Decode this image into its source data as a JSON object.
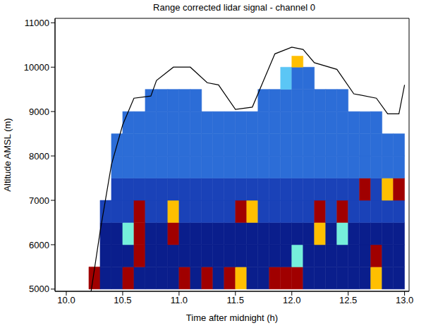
{
  "chart_data": {
    "type": "heatmap",
    "title": "Range corrected lidar signal - channel 0",
    "x_label": "Time after midnight (h)",
    "y_label": "Altitude AMSL (m)",
    "xlim": [
      9.9,
      13.04
    ],
    "ylim": [
      4950,
      11100
    ],
    "xticks": [
      {
        "value": 10,
        "label": "10.0"
      },
      10.5,
      {
        "value": 11,
        "label": "11.0"
      },
      11.5,
      {
        "value": 12,
        "label": "12.0"
      },
      12.5,
      {
        "value": 13,
        "label": "13.0"
      }
    ],
    "yticks": [
      5000,
      6000,
      7000,
      8000,
      9000,
      10000,
      11000
    ],
    "x_edges": [
      10.2,
      10.3,
      10.4,
      10.5,
      10.6,
      10.7,
      10.8,
      10.9,
      11.0,
      11.1,
      11.2,
      11.3,
      11.4,
      11.5,
      11.6,
      11.7,
      11.8,
      11.9,
      12.0,
      12.1,
      12.2,
      12.3,
      12.4,
      12.5,
      12.6,
      12.7,
      12.8,
      12.9,
      13.0
    ],
    "y_edges": [
      5000,
      5500,
      6000,
      6500,
      7000,
      7500,
      8000,
      8500,
      9000,
      9500,
      10000,
      10250
    ],
    "cells": [
      [
        10,
        1,
        1,
        10,
        1,
        1,
        1,
        1,
        10,
        1,
        10,
        1,
        10,
        8,
        1,
        1,
        10,
        10,
        10,
        1,
        1,
        1,
        1,
        1,
        1,
        8,
        1,
        1
      ],
      [
        null,
        1,
        1,
        1,
        10,
        1,
        1,
        1,
        1,
        1,
        1,
        1,
        1,
        1,
        1,
        1,
        1,
        1,
        6,
        1,
        1,
        1,
        1,
        1,
        1,
        10,
        1,
        1
      ],
      [
        null,
        1,
        1,
        6,
        10,
        1,
        1,
        10,
        1,
        1,
        1,
        1,
        1,
        1,
        1,
        1,
        1,
        1,
        1,
        1,
        8,
        1,
        6,
        1,
        1,
        1,
        1,
        1
      ],
      [
        null,
        2,
        2,
        2,
        10,
        2,
        2,
        8,
        2,
        2,
        2,
        2,
        2,
        10,
        8,
        2,
        2,
        2,
        2,
        2,
        10,
        2,
        10,
        2,
        2,
        2,
        2,
        2
      ],
      [
        null,
        null,
        2,
        2,
        2,
        2,
        2,
        2,
        2,
        2,
        2,
        2,
        2,
        2,
        2,
        2,
        2,
        2,
        2,
        2,
        2,
        2,
        2,
        2,
        10,
        2,
        8,
        10
      ],
      [
        null,
        null,
        3,
        3,
        3,
        3,
        3,
        3,
        3,
        3,
        3,
        3,
        3,
        3,
        3,
        3,
        3,
        3,
        3,
        3,
        3,
        3,
        3,
        3,
        3,
        3,
        3,
        3
      ],
      [
        null,
        null,
        3,
        3,
        3,
        3,
        3,
        3,
        3,
        3,
        3,
        3,
        3,
        3,
        3,
        3,
        3,
        3,
        3,
        3,
        3,
        3,
        3,
        3,
        3,
        3,
        3,
        3
      ],
      [
        null,
        null,
        null,
        3,
        3,
        3,
        3,
        3,
        3,
        3,
        3,
        3,
        3,
        3,
        3,
        3,
        3,
        3,
        3,
        3,
        3,
        3,
        3,
        3,
        3,
        3,
        null,
        null
      ],
      [
        null,
        null,
        null,
        null,
        null,
        3,
        3,
        3,
        3,
        3,
        null,
        null,
        null,
        null,
        null,
        3,
        3,
        3,
        3,
        3,
        3,
        3,
        3,
        null,
        null,
        null,
        null,
        null
      ],
      [
        null,
        null,
        null,
        null,
        null,
        null,
        null,
        null,
        null,
        null,
        null,
        null,
        null,
        null,
        null,
        null,
        null,
        5,
        3,
        3,
        null,
        null,
        null,
        null,
        null,
        null,
        null,
        null
      ],
      [
        null,
        null,
        null,
        null,
        null,
        null,
        null,
        null,
        null,
        null,
        null,
        null,
        null,
        null,
        null,
        null,
        null,
        null,
        8,
        null,
        null,
        null,
        null,
        null,
        null,
        null,
        null,
        null
      ]
    ],
    "series": [
      {
        "type": "line",
        "color": "#000000",
        "x": [
          10.22,
          10.3,
          10.4,
          10.5,
          10.6,
          10.75,
          10.8,
          10.95,
          11.1,
          11.25,
          11.35,
          11.5,
          11.65,
          11.75,
          11.85,
          12.0,
          12.1,
          12.2,
          12.4,
          12.55,
          12.75,
          12.85,
          12.95,
          13.0
        ],
        "values": [
          4950,
          6300,
          7800,
          8700,
          9300,
          9350,
          9700,
          10000,
          10000,
          9650,
          9600,
          9050,
          9100,
          9700,
          10300,
          10450,
          10400,
          10100,
          9950,
          9400,
          9300,
          8950,
          8950,
          9600
        ]
      }
    ]
  }
}
